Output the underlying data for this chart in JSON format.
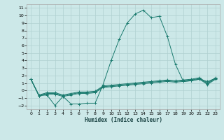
{
  "xlabel": "Humidex (Indice chaleur)",
  "background_color": "#cce8e8",
  "grid_color": "#b0d0d0",
  "line_color": "#1a7a6e",
  "xlim": [
    -0.5,
    23.5
  ],
  "ylim": [
    -2.5,
    11.5
  ],
  "xticks": [
    0,
    1,
    2,
    3,
    4,
    5,
    6,
    7,
    8,
    9,
    10,
    11,
    12,
    13,
    14,
    15,
    16,
    17,
    18,
    19,
    20,
    21,
    22,
    23
  ],
  "yticks": [
    -2,
    -1,
    0,
    1,
    2,
    3,
    4,
    5,
    6,
    7,
    8,
    9,
    10,
    11
  ],
  "series": [
    [
      1.5,
      -0.7,
      -0.6,
      -2.0,
      -0.8,
      -1.8,
      -1.8,
      -1.7,
      -1.7,
      0.8,
      4.0,
      6.8,
      9.0,
      10.2,
      10.7,
      9.7,
      9.9,
      7.2,
      3.5,
      1.2,
      1.3,
      1.5,
      1.2,
      1.6
    ],
    [
      1.5,
      -0.7,
      -0.5,
      -0.5,
      -0.8,
      -0.6,
      -0.4,
      -0.4,
      -0.3,
      0.4,
      0.5,
      0.6,
      0.7,
      0.8,
      0.9,
      1.0,
      1.1,
      1.2,
      1.1,
      1.2,
      1.3,
      1.5,
      0.8,
      1.5
    ],
    [
      1.5,
      -0.7,
      -0.4,
      -0.4,
      -0.7,
      -0.5,
      -0.3,
      -0.3,
      -0.2,
      0.5,
      0.6,
      0.7,
      0.8,
      0.9,
      1.0,
      1.1,
      1.2,
      1.3,
      1.2,
      1.3,
      1.4,
      1.6,
      0.9,
      1.6
    ],
    [
      1.5,
      -0.6,
      -0.3,
      -0.3,
      -0.6,
      -0.4,
      -0.2,
      -0.2,
      -0.1,
      0.6,
      0.7,
      0.8,
      0.9,
      1.0,
      1.1,
      1.2,
      1.3,
      1.4,
      1.3,
      1.4,
      1.5,
      1.7,
      1.0,
      1.7
    ]
  ]
}
